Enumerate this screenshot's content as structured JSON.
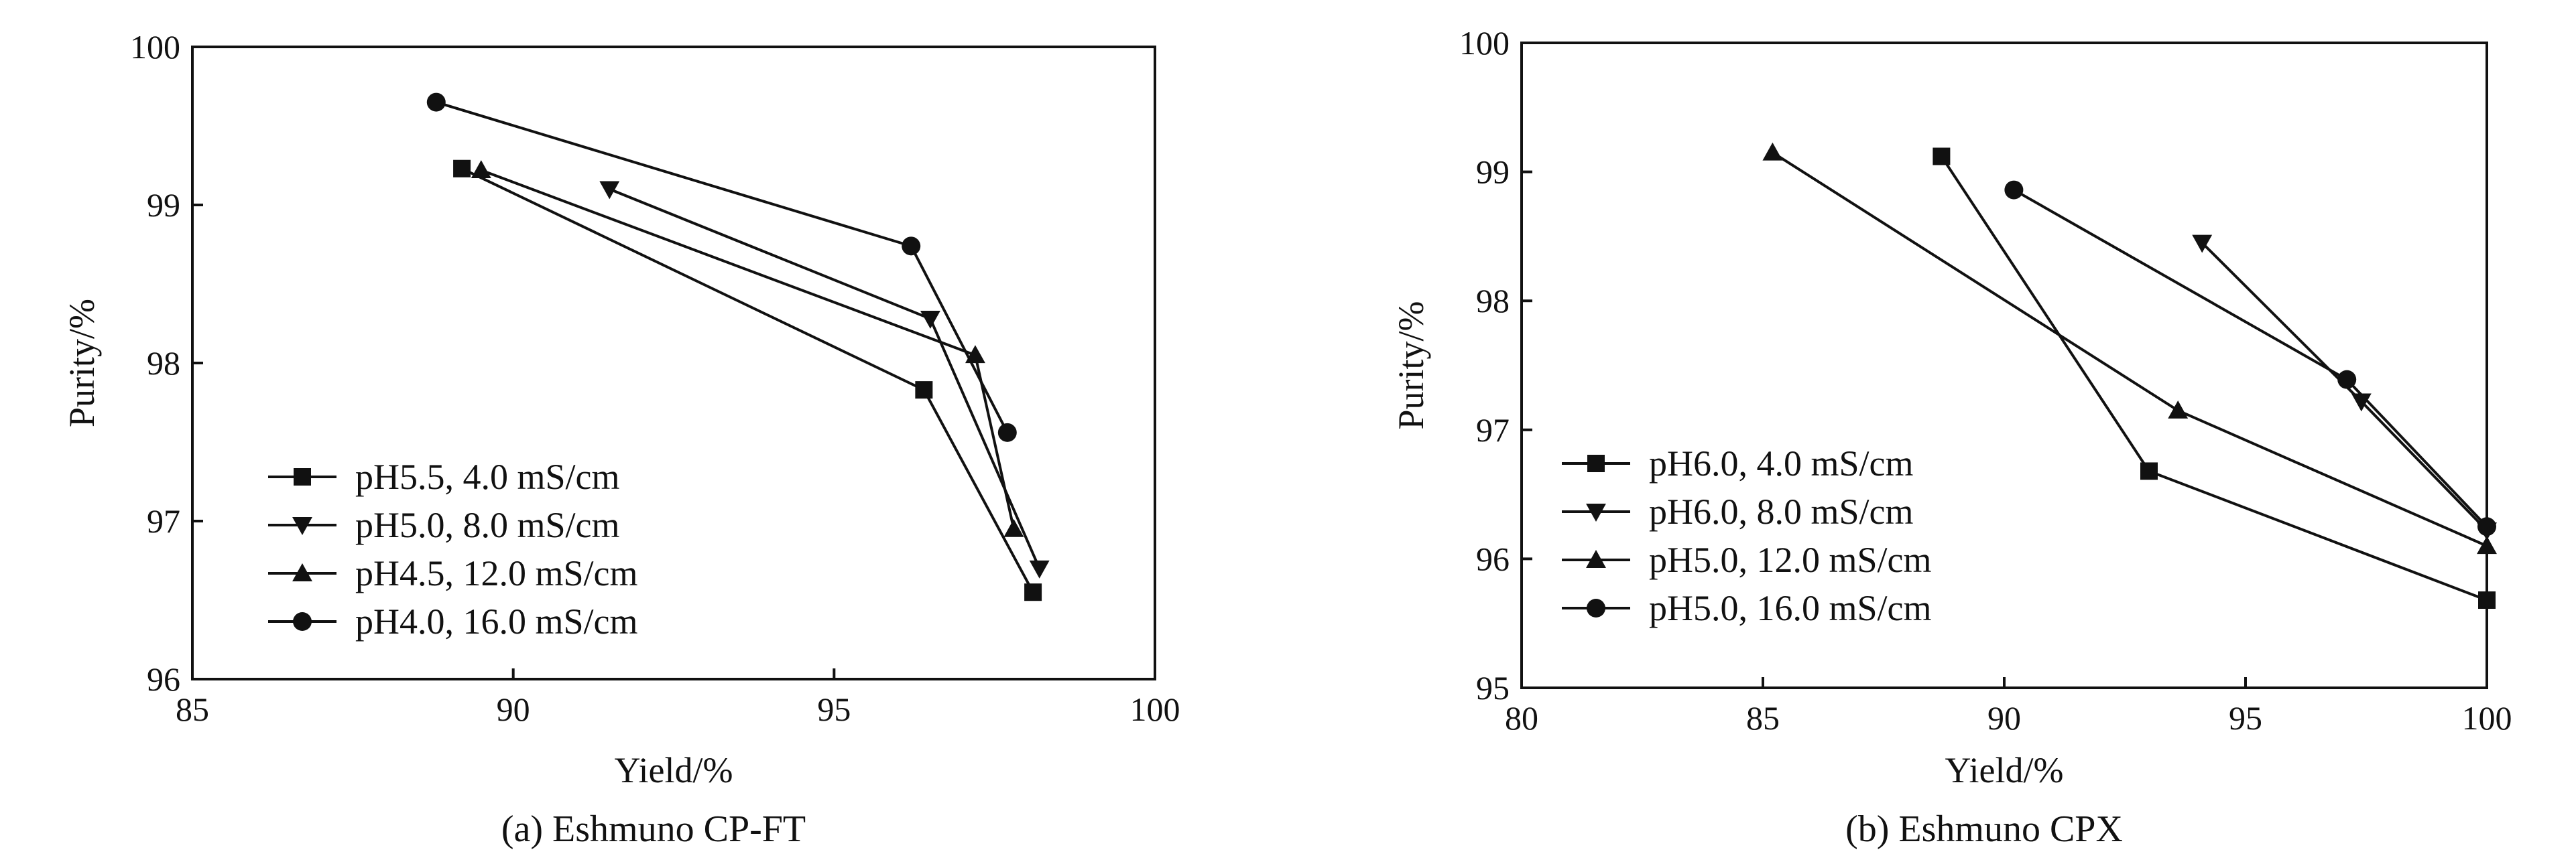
{
  "chart_data": [
    {
      "type": "line",
      "caption": "(a) Eshmuno CP-FT",
      "xlabel": "Yield/%",
      "ylabel": "Purity/%",
      "xlim": [
        85,
        100
      ],
      "ylim": [
        96,
        100
      ],
      "xticks": [
        85,
        90,
        95,
        100
      ],
      "yticks": [
        96,
        97,
        98,
        99,
        100
      ],
      "grid": false,
      "legend_position": "bottom-left",
      "series": [
        {
          "name": "pH5.5, 4.0 mS/cm",
          "marker": "square",
          "points": [
            [
              89.2,
              99.23
            ],
            [
              96.4,
              97.83
            ],
            [
              98.1,
              96.55
            ]
          ]
        },
        {
          "name": "pH5.0, 8.0 mS/cm",
          "marker": "triangle-down",
          "points": [
            [
              91.5,
              99.1
            ],
            [
              96.5,
              98.28
            ],
            [
              98.2,
              96.7
            ]
          ]
        },
        {
          "name": "pH4.5, 12.0 mS/cm",
          "marker": "triangle-up",
          "points": [
            [
              89.5,
              99.22
            ],
            [
              97.2,
              98.05
            ],
            [
              97.8,
              96.95
            ]
          ]
        },
        {
          "name": "pH4.0, 16.0 mS/cm",
          "marker": "circle",
          "points": [
            [
              88.8,
              99.65
            ],
            [
              96.2,
              98.74
            ],
            [
              97.7,
              97.56
            ]
          ]
        }
      ]
    },
    {
      "type": "line",
      "caption": "(b) Eshmuno CPX",
      "xlabel": "Yield/%",
      "ylabel": "Purity/%",
      "xlim": [
        80,
        100
      ],
      "ylim": [
        95,
        100
      ],
      "xticks": [
        80,
        85,
        90,
        95,
        100
      ],
      "yticks": [
        95,
        96,
        97,
        98,
        99,
        100
      ],
      "grid": false,
      "legend_position": "bottom-left",
      "series": [
        {
          "name": "pH6.0, 4.0 mS/cm",
          "marker": "square",
          "points": [
            [
              88.7,
              99.12
            ],
            [
              93.0,
              96.68
            ],
            [
              100.0,
              95.68
            ]
          ]
        },
        {
          "name": "pH6.0, 8.0 mS/cm",
          "marker": "triangle-down",
          "points": [
            [
              94.1,
              98.45
            ],
            [
              97.4,
              97.22
            ],
            [
              100.0,
              96.22
            ]
          ]
        },
        {
          "name": "pH5.0, 12.0 mS/cm",
          "marker": "triangle-up",
          "points": [
            [
              85.2,
              99.15
            ],
            [
              93.6,
              97.15
            ],
            [
              100.0,
              96.1
            ]
          ]
        },
        {
          "name": "pH5.0, 16.0 mS/cm",
          "marker": "circle",
          "points": [
            [
              90.2,
              98.86
            ],
            [
              97.1,
              97.39
            ],
            [
              100.0,
              96.25
            ]
          ]
        }
      ]
    }
  ]
}
